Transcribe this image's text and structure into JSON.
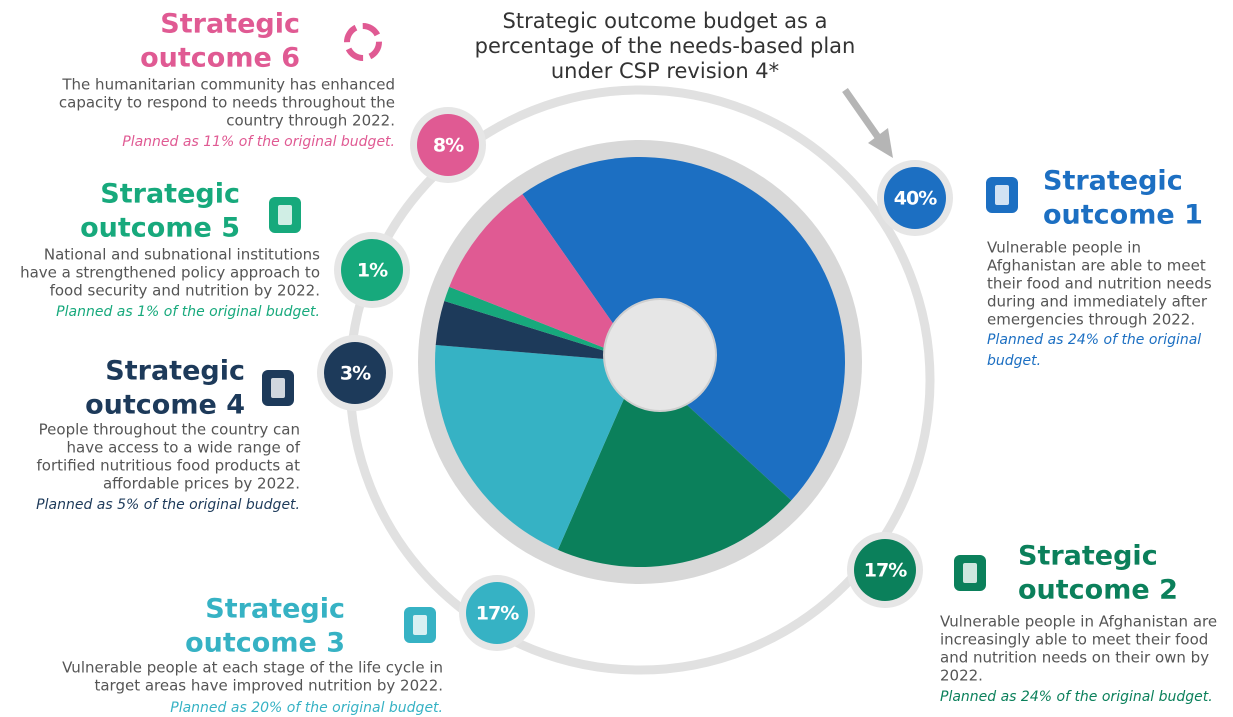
{
  "chart_data": {
    "type": "pie",
    "title": [
      "Strategic outcome budget as a",
      "percentage of the needs-based plan",
      "under CSP revision 4*"
    ],
    "categories": [
      [
        "Strategic",
        "outcome 1"
      ],
      [
        "Strategic",
        "outcome 2"
      ],
      [
        "Strategic",
        "outcome 3"
      ],
      [
        "Strategic",
        "outcome 4"
      ],
      [
        "Strategic",
        "outcome 5"
      ],
      [
        "Strategic",
        "outcome 6"
      ]
    ],
    "values": [
      40,
      17,
      17,
      3,
      1,
      8
    ],
    "value_labels": [
      "40%",
      "17%",
      "17%",
      "3%",
      "1%",
      "8%"
    ],
    "colors": [
      "#1c6fc2",
      "#0b805b",
      "#36b2c4",
      "#1d3a5a",
      "#17a97c",
      "#e05a93"
    ],
    "descriptions": [
      [
        "Vulnerable people in",
        "Afghanistan are able to meet",
        "their food and nutrition needs",
        "during and immediately after",
        "emergencies through 2022."
      ],
      [
        "Vulnerable people in Afghanistan are",
        "increasingly able to meet their food",
        "and nutrition needs on their own by",
        "2022."
      ],
      [
        "Vulnerable people at each stage of the life cycle in",
        "target areas have improved nutrition by 2022."
      ],
      [
        "People throughout the country can",
        "have access to a wide range of",
        "fortified nutritious food products at",
        "affordable prices by 2022."
      ],
      [
        "National and subnational institutions",
        "have a strengthened policy approach to",
        "food security and nutrition by 2022."
      ],
      [
        "The humanitarian community has enhanced",
        "capacity to respond to needs throughout the",
        "country through 2022."
      ]
    ],
    "notes": [
      [
        "Planned as 24% of the original",
        "budget."
      ],
      [
        "Planned as 24% of the original budget."
      ],
      [
        "Planned as 20% of the original budget."
      ],
      [
        "Planned as 5% of the original budget."
      ],
      [
        "Planned as 1% of the original budget."
      ],
      [
        "Planned as 11% of the original budget."
      ]
    ]
  }
}
